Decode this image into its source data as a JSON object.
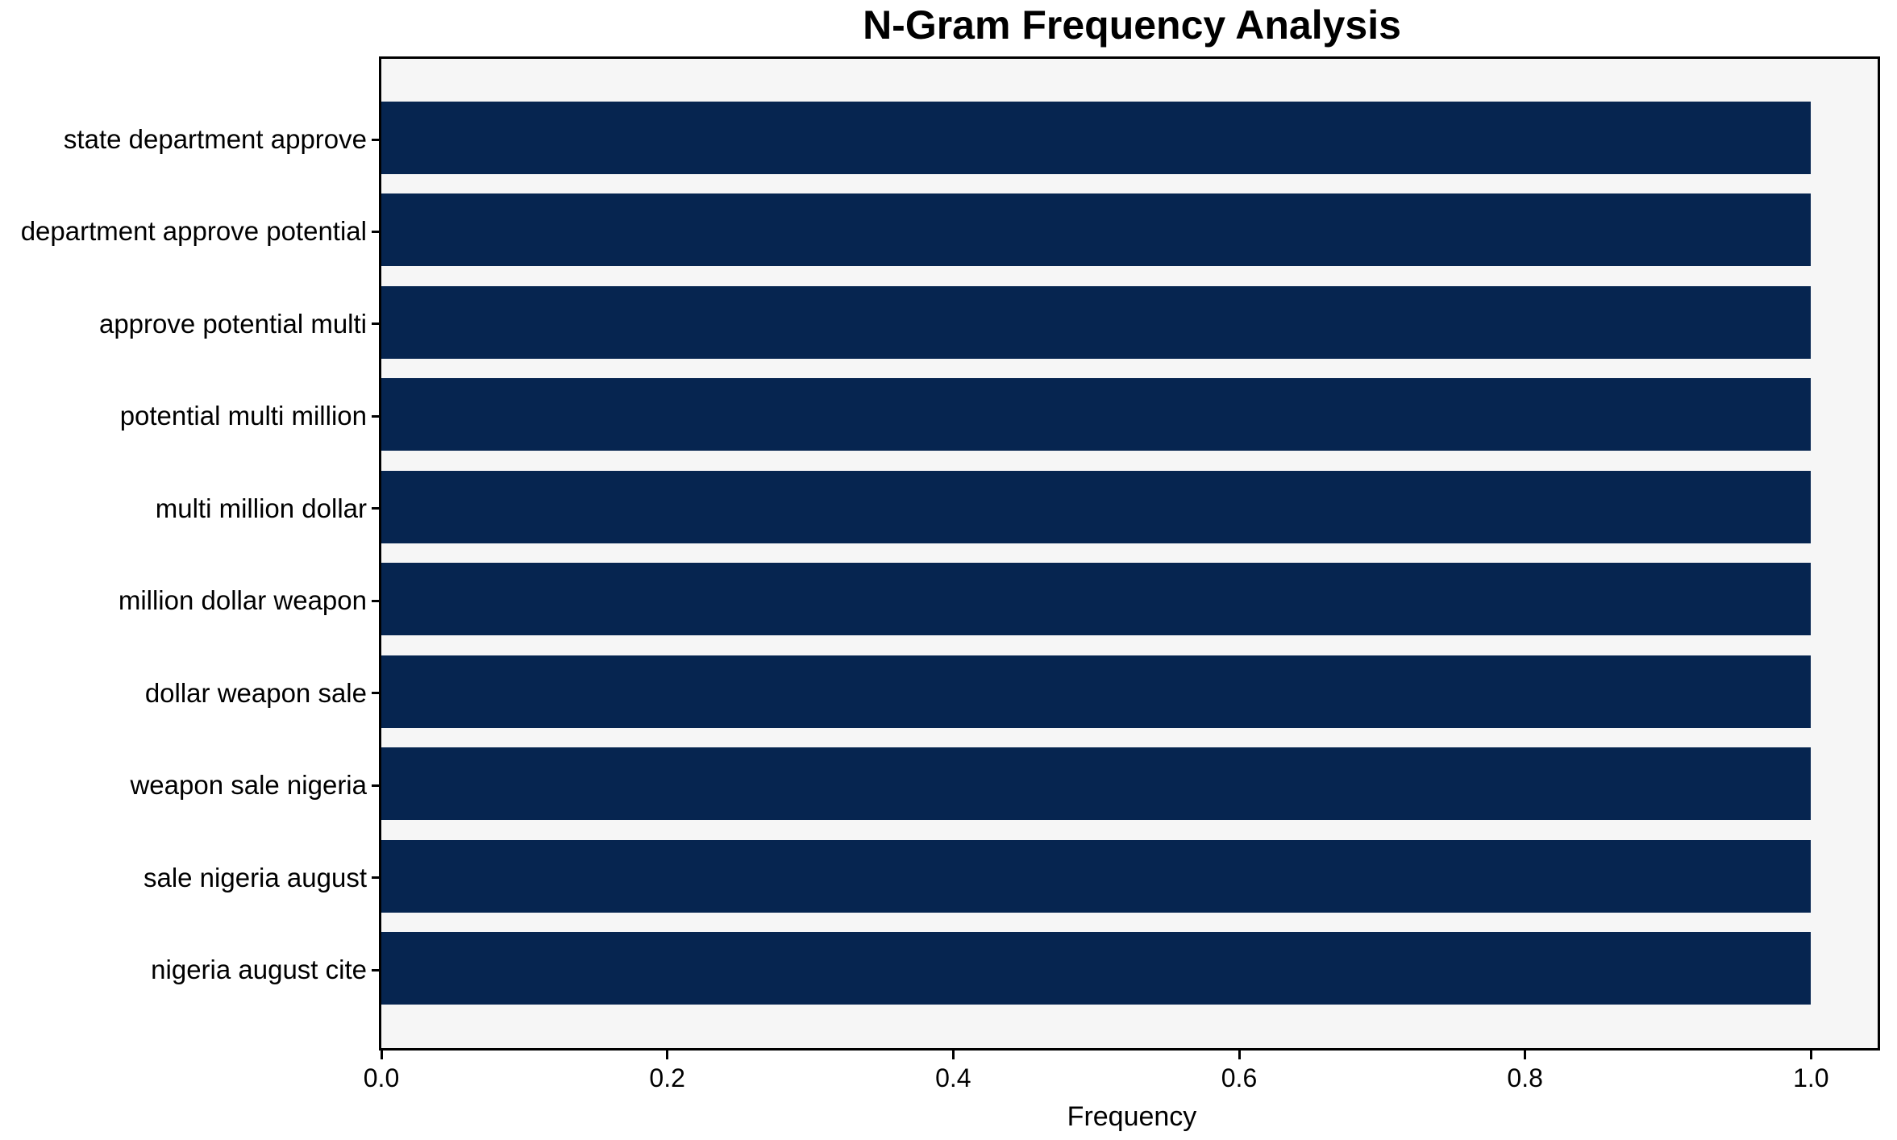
{
  "chart_data": {
    "type": "bar",
    "orientation": "horizontal",
    "title": "N-Gram Frequency Analysis",
    "xlabel": "Frequency",
    "ylabel": "",
    "categories": [
      "state department approve",
      "department approve potential",
      "approve potential multi",
      "potential multi million",
      "multi million dollar",
      "million dollar weapon",
      "dollar weapon sale",
      "weapon sale nigeria",
      "sale nigeria august",
      "nigeria august cite"
    ],
    "values": [
      1.0,
      1.0,
      1.0,
      1.0,
      1.0,
      1.0,
      1.0,
      1.0,
      1.0,
      1.0
    ],
    "xlim": [
      0,
      1.05
    ],
    "xticks": [
      {
        "value": 0.0,
        "label": "0.0"
      },
      {
        "value": 0.2,
        "label": "0.2"
      },
      {
        "value": 0.4,
        "label": "0.4"
      },
      {
        "value": 0.6,
        "label": "0.6"
      },
      {
        "value": 0.8,
        "label": "0.8"
      },
      {
        "value": 1.0,
        "label": "1.0"
      }
    ],
    "grid": false,
    "legend_position": "none",
    "colors": {
      "bar": "#062550",
      "plot_background": "#f6f6f6",
      "figure_background": "#ffffff",
      "axis": "#000000",
      "text": "#000000"
    }
  }
}
